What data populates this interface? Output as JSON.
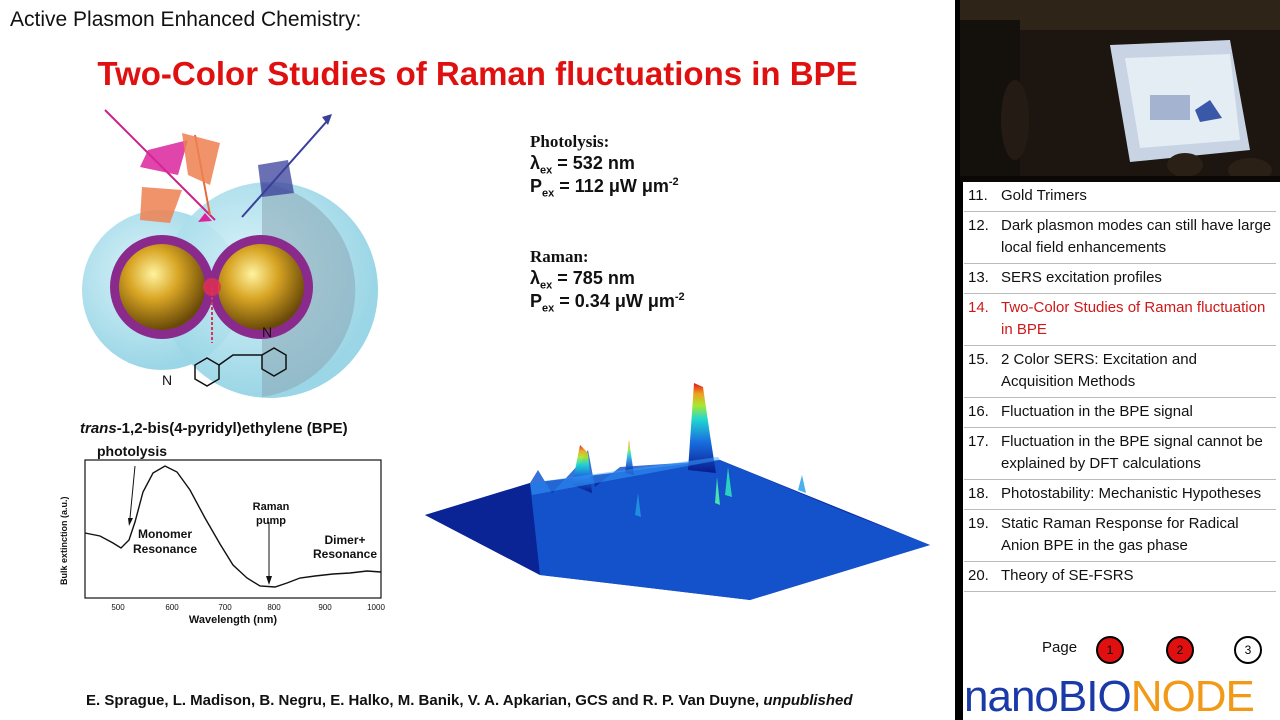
{
  "slide": {
    "header": "Active  Plasmon Enhanced Chemistry:",
    "title": "Two-Color Studies of Raman fluctuations in BPE",
    "photolysis": {
      "title": "Photolysis:",
      "lambda_value": "= 532 nm",
      "power_value": "= 112 μW μm",
      "power_exp": "-2"
    },
    "raman": {
      "title": "Raman:",
      "lambda_value": "= 785 nm",
      "power_value": "= 0.34 μW μm",
      "power_exp": "-2"
    },
    "lambda_symbol": "λ",
    "power_symbol": "P",
    "sub_ex": "ex",
    "molecule": {
      "prefix": "trans",
      "rest": "-1,2-bis(4-pyridyl)ethylene  (BPE)",
      "n_label": "N"
    },
    "spectrum": {
      "ylabel": "Bulk extinction (a.u.)",
      "xlabel": "Wavelength (nm)",
      "xticks": [
        "500",
        "600",
        "700",
        "800",
        "900",
        "1000"
      ],
      "annotations": {
        "photolysis": "photolysis",
        "monomer_1": "Monomer",
        "monomer_2": "Resonance",
        "raman_1": "Raman",
        "raman_2": "pump",
        "dimer_1": "Dimer+",
        "dimer_2": "Resonance"
      }
    },
    "credits": {
      "names": "E. Sprague, L. Madison,  B. Negru, E. Halko, M. Banik, V. A. Apkarian, GCS and R. P. Van Duyne, ",
      "status": "unpublished"
    }
  },
  "sidebar": {
    "chapters": [
      {
        "num": "11.",
        "label": "Gold Trimers",
        "active": false
      },
      {
        "num": "12.",
        "label": "Dark plasmon modes can still have large local field enhancements",
        "active": false
      },
      {
        "num": "13.",
        "label": "SERS excitation profiles",
        "active": false
      },
      {
        "num": "14.",
        "label": "Two-Color Studies of Raman fluctuation in BPE",
        "active": true
      },
      {
        "num": "15.",
        "label": "2 Color SERS: Excitation and Acquisition Methods",
        "active": false
      },
      {
        "num": "16.",
        "label": "Fluctuation in the BPE signal",
        "active": false
      },
      {
        "num": "17.",
        "label": "Fluctuation in the BPE signal cannot be explained by DFT calculations",
        "active": false
      },
      {
        "num": "18.",
        "label": "Photostability: Mechanistic Hypotheses",
        "active": false
      },
      {
        "num": "19.",
        "label": "Static Raman Response for Radical Anion BPE in the gas phase",
        "active": false
      },
      {
        "num": "20.",
        "label": "Theory of SE-FSRS",
        "active": false
      }
    ],
    "page_label": "Page",
    "pages": [
      "1",
      "2",
      "3"
    ],
    "logo_part1": "nanoBIO",
    "logo_part2": "NODE"
  },
  "colors": {
    "title_red": "#e01010",
    "active_chapter": "#d01818",
    "logo_blue": "#1a3aa8",
    "logo_orange": "#f29a18"
  }
}
